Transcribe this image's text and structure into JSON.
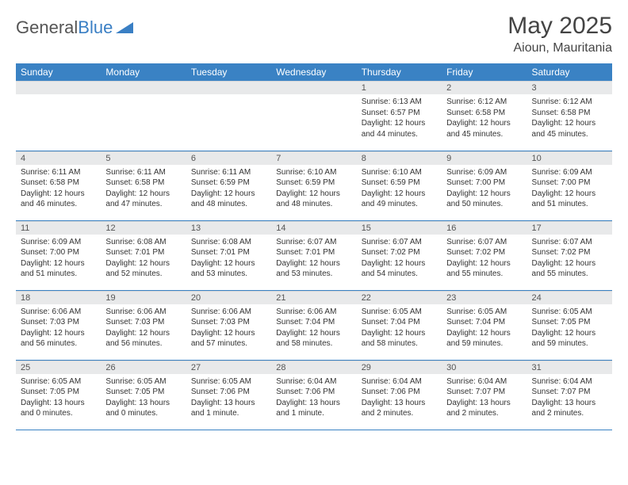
{
  "logo": {
    "text1": "General",
    "text2": "Blue"
  },
  "title": "May 2025",
  "location": "Aioun, Mauritania",
  "colors": {
    "header_bg": "#3a82c4",
    "header_text": "#ffffff",
    "daynum_bg": "#e8e9ea",
    "border": "#3a82c4",
    "page_bg": "#ffffff",
    "text": "#333333"
  },
  "weekdays": [
    "Sunday",
    "Monday",
    "Tuesday",
    "Wednesday",
    "Thursday",
    "Friday",
    "Saturday"
  ],
  "weeks": [
    [
      {
        "n": "",
        "lines": []
      },
      {
        "n": "",
        "lines": []
      },
      {
        "n": "",
        "lines": []
      },
      {
        "n": "",
        "lines": []
      },
      {
        "n": "1",
        "lines": [
          "Sunrise: 6:13 AM",
          "Sunset: 6:57 PM",
          "Daylight: 12 hours",
          "and 44 minutes."
        ]
      },
      {
        "n": "2",
        "lines": [
          "Sunrise: 6:12 AM",
          "Sunset: 6:58 PM",
          "Daylight: 12 hours",
          "and 45 minutes."
        ]
      },
      {
        "n": "3",
        "lines": [
          "Sunrise: 6:12 AM",
          "Sunset: 6:58 PM",
          "Daylight: 12 hours",
          "and 45 minutes."
        ]
      }
    ],
    [
      {
        "n": "4",
        "lines": [
          "Sunrise: 6:11 AM",
          "Sunset: 6:58 PM",
          "Daylight: 12 hours",
          "and 46 minutes."
        ]
      },
      {
        "n": "5",
        "lines": [
          "Sunrise: 6:11 AM",
          "Sunset: 6:58 PM",
          "Daylight: 12 hours",
          "and 47 minutes."
        ]
      },
      {
        "n": "6",
        "lines": [
          "Sunrise: 6:11 AM",
          "Sunset: 6:59 PM",
          "Daylight: 12 hours",
          "and 48 minutes."
        ]
      },
      {
        "n": "7",
        "lines": [
          "Sunrise: 6:10 AM",
          "Sunset: 6:59 PM",
          "Daylight: 12 hours",
          "and 48 minutes."
        ]
      },
      {
        "n": "8",
        "lines": [
          "Sunrise: 6:10 AM",
          "Sunset: 6:59 PM",
          "Daylight: 12 hours",
          "and 49 minutes."
        ]
      },
      {
        "n": "9",
        "lines": [
          "Sunrise: 6:09 AM",
          "Sunset: 7:00 PM",
          "Daylight: 12 hours",
          "and 50 minutes."
        ]
      },
      {
        "n": "10",
        "lines": [
          "Sunrise: 6:09 AM",
          "Sunset: 7:00 PM",
          "Daylight: 12 hours",
          "and 51 minutes."
        ]
      }
    ],
    [
      {
        "n": "11",
        "lines": [
          "Sunrise: 6:09 AM",
          "Sunset: 7:00 PM",
          "Daylight: 12 hours",
          "and 51 minutes."
        ]
      },
      {
        "n": "12",
        "lines": [
          "Sunrise: 6:08 AM",
          "Sunset: 7:01 PM",
          "Daylight: 12 hours",
          "and 52 minutes."
        ]
      },
      {
        "n": "13",
        "lines": [
          "Sunrise: 6:08 AM",
          "Sunset: 7:01 PM",
          "Daylight: 12 hours",
          "and 53 minutes."
        ]
      },
      {
        "n": "14",
        "lines": [
          "Sunrise: 6:07 AM",
          "Sunset: 7:01 PM",
          "Daylight: 12 hours",
          "and 53 minutes."
        ]
      },
      {
        "n": "15",
        "lines": [
          "Sunrise: 6:07 AM",
          "Sunset: 7:02 PM",
          "Daylight: 12 hours",
          "and 54 minutes."
        ]
      },
      {
        "n": "16",
        "lines": [
          "Sunrise: 6:07 AM",
          "Sunset: 7:02 PM",
          "Daylight: 12 hours",
          "and 55 minutes."
        ]
      },
      {
        "n": "17",
        "lines": [
          "Sunrise: 6:07 AM",
          "Sunset: 7:02 PM",
          "Daylight: 12 hours",
          "and 55 minutes."
        ]
      }
    ],
    [
      {
        "n": "18",
        "lines": [
          "Sunrise: 6:06 AM",
          "Sunset: 7:03 PM",
          "Daylight: 12 hours",
          "and 56 minutes."
        ]
      },
      {
        "n": "19",
        "lines": [
          "Sunrise: 6:06 AM",
          "Sunset: 7:03 PM",
          "Daylight: 12 hours",
          "and 56 minutes."
        ]
      },
      {
        "n": "20",
        "lines": [
          "Sunrise: 6:06 AM",
          "Sunset: 7:03 PM",
          "Daylight: 12 hours",
          "and 57 minutes."
        ]
      },
      {
        "n": "21",
        "lines": [
          "Sunrise: 6:06 AM",
          "Sunset: 7:04 PM",
          "Daylight: 12 hours",
          "and 58 minutes."
        ]
      },
      {
        "n": "22",
        "lines": [
          "Sunrise: 6:05 AM",
          "Sunset: 7:04 PM",
          "Daylight: 12 hours",
          "and 58 minutes."
        ]
      },
      {
        "n": "23",
        "lines": [
          "Sunrise: 6:05 AM",
          "Sunset: 7:04 PM",
          "Daylight: 12 hours",
          "and 59 minutes."
        ]
      },
      {
        "n": "24",
        "lines": [
          "Sunrise: 6:05 AM",
          "Sunset: 7:05 PM",
          "Daylight: 12 hours",
          "and 59 minutes."
        ]
      }
    ],
    [
      {
        "n": "25",
        "lines": [
          "Sunrise: 6:05 AM",
          "Sunset: 7:05 PM",
          "Daylight: 13 hours",
          "and 0 minutes."
        ]
      },
      {
        "n": "26",
        "lines": [
          "Sunrise: 6:05 AM",
          "Sunset: 7:05 PM",
          "Daylight: 13 hours",
          "and 0 minutes."
        ]
      },
      {
        "n": "27",
        "lines": [
          "Sunrise: 6:05 AM",
          "Sunset: 7:06 PM",
          "Daylight: 13 hours",
          "and 1 minute."
        ]
      },
      {
        "n": "28",
        "lines": [
          "Sunrise: 6:04 AM",
          "Sunset: 7:06 PM",
          "Daylight: 13 hours",
          "and 1 minute."
        ]
      },
      {
        "n": "29",
        "lines": [
          "Sunrise: 6:04 AM",
          "Sunset: 7:06 PM",
          "Daylight: 13 hours",
          "and 2 minutes."
        ]
      },
      {
        "n": "30",
        "lines": [
          "Sunrise: 6:04 AM",
          "Sunset: 7:07 PM",
          "Daylight: 13 hours",
          "and 2 minutes."
        ]
      },
      {
        "n": "31",
        "lines": [
          "Sunrise: 6:04 AM",
          "Sunset: 7:07 PM",
          "Daylight: 13 hours",
          "and 2 minutes."
        ]
      }
    ]
  ]
}
